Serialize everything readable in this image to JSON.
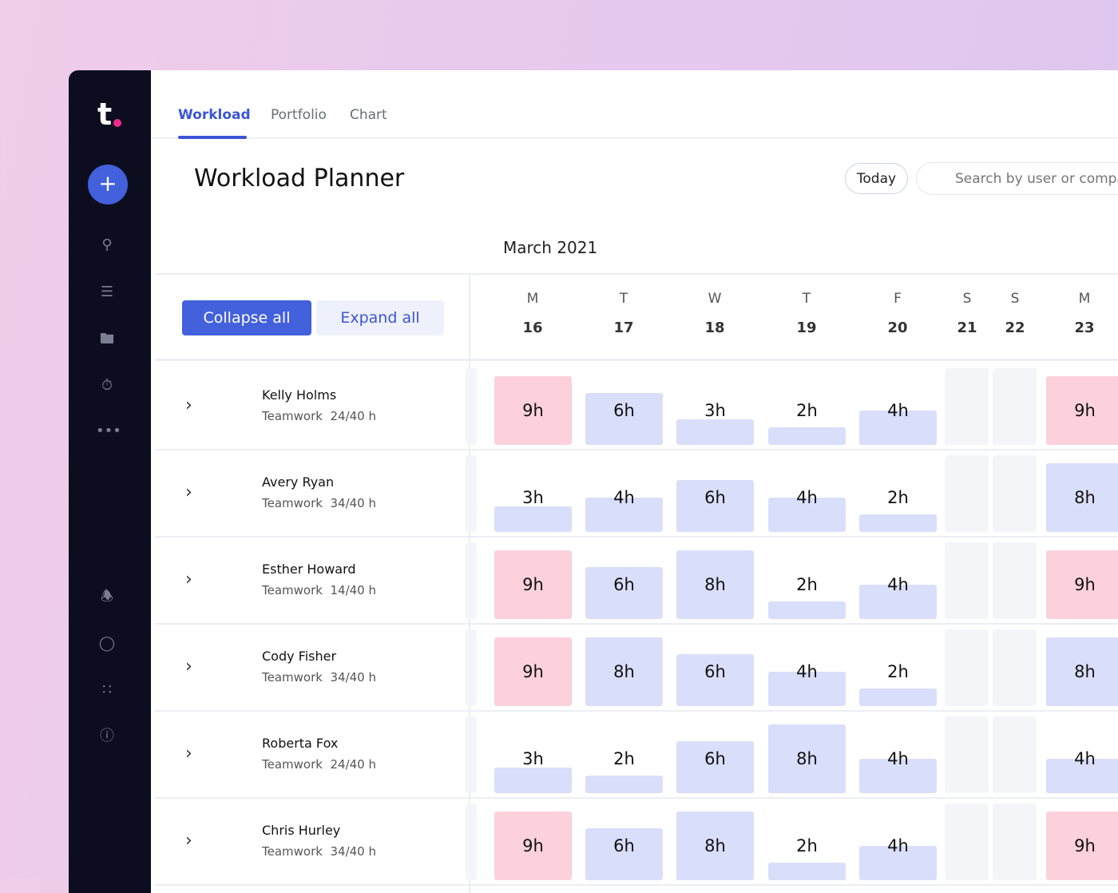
{
  "sidebar": {
    "logo": "t",
    "icons": [
      "plus-icon",
      "search-icon",
      "tasks-icon",
      "folder-icon",
      "timer-icon",
      "more-icon",
      "bell-icon",
      "chat-icon",
      "apps-icon",
      "help-icon"
    ]
  },
  "tabs": [
    {
      "label": "Workload",
      "active": true
    },
    {
      "label": "Portfolio"
    },
    {
      "label": "Chart"
    }
  ],
  "page_title": "Workload Planner",
  "today_label": "Today",
  "search_placeholder": "Search by user or compa",
  "month": "March 2021",
  "collapse_label": "Collapse all",
  "expand_label": "Expand all",
  "days": [
    {
      "l": "M",
      "n": "16"
    },
    {
      "l": "T",
      "n": "17"
    },
    {
      "l": "W",
      "n": "18"
    },
    {
      "l": "T",
      "n": "19"
    },
    {
      "l": "F",
      "n": "20"
    },
    {
      "l": "S",
      "n": "21",
      "weekend": true
    },
    {
      "l": "S",
      "n": "22",
      "weekend": true
    },
    {
      "l": "M",
      "n": "23"
    }
  ],
  "capacity_hours_per_day": 8,
  "colors": {
    "accent": "#4360dd",
    "normal": "#d9defa",
    "over": "#fcd1dc",
    "weekend": "#f4f5f9"
  },
  "people": [
    {
      "name": "Kelly Holms",
      "sub": "Teamwork  24/40 h",
      "hours": [
        9,
        6,
        3,
        2,
        4,
        null,
        null,
        9
      ]
    },
    {
      "name": "Avery Ryan",
      "sub": "Teamwork  34/40 h",
      "hours": [
        3,
        4,
        6,
        4,
        2,
        null,
        null,
        8
      ]
    },
    {
      "name": "Esther Howard",
      "sub": "Teamwork  14/40 h",
      "hours": [
        9,
        6,
        8,
        2,
        4,
        null,
        null,
        9
      ]
    },
    {
      "name": "Cody Fisher",
      "sub": "Teamwork  34/40 h",
      "hours": [
        9,
        8,
        6,
        4,
        2,
        null,
        null,
        8
      ]
    },
    {
      "name": "Roberta Fox",
      "sub": "Teamwork  24/40 h",
      "hours": [
        3,
        2,
        6,
        8,
        4,
        null,
        null,
        4
      ]
    },
    {
      "name": "Chris Hurley",
      "sub": "Teamwork  34/40 h",
      "hours": [
        9,
        6,
        8,
        2,
        4,
        null,
        null,
        9
      ]
    }
  ]
}
